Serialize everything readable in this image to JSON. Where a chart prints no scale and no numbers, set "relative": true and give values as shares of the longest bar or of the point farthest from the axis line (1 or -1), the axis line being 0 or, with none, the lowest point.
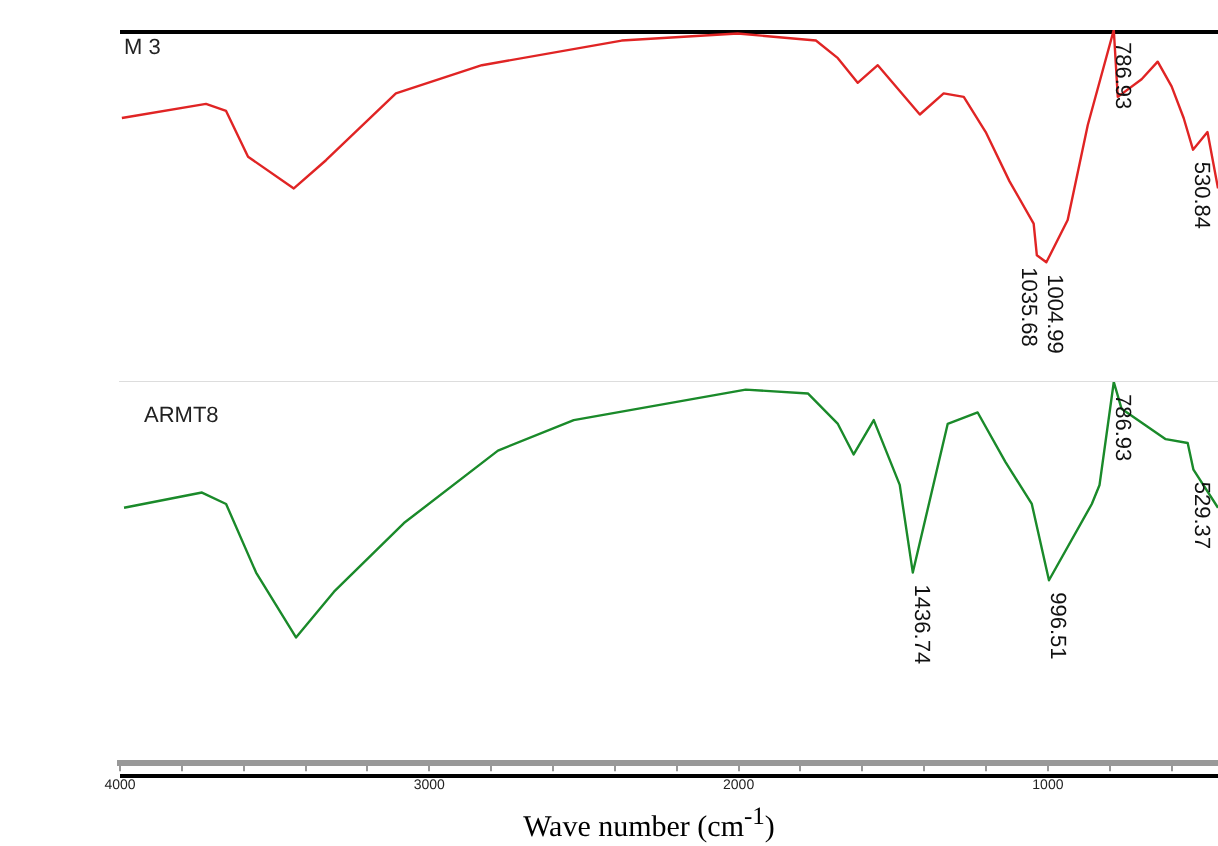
{
  "chart_data": [
    {
      "type": "line",
      "relative": true,
      "xlim": [
        4000,
        450
      ],
      "tick_labels": false,
      "grid": false,
      "legend": false,
      "marker": "none",
      "line_style": "solid",
      "series": [
        {
          "name": "M 3",
          "color": "#e02424",
          "x": [
            3994,
            3722,
            3657,
            3586,
            3438,
            3334,
            3108,
            2830,
            2378,
            2003,
            1750,
            1679,
            1615,
            1550,
            1414,
            1337,
            1272,
            1201,
            1124,
            1046,
            1035.68,
            1004.99,
            936,
            871,
            786.93,
            774,
            697,
            645,
            600,
            561,
            530.84,
            484,
            450
          ],
          "values": [
            0.75,
            0.79,
            0.77,
            0.64,
            0.55,
            0.63,
            0.82,
            0.9,
            0.97,
            0.99,
            0.97,
            0.92,
            0.85,
            0.9,
            0.76,
            0.82,
            0.81,
            0.71,
            0.57,
            0.45,
            0.36,
            0.34,
            0.46,
            0.73,
            1,
            0.81,
            0.86,
            0.91,
            0.84,
            0.75,
            0.66,
            0.71,
            0.55
          ]
        }
      ],
      "annotations": [
        {
          "text": "1035.68",
          "x": 1035.68,
          "y": 0.36
        },
        {
          "text": "1004.99",
          "x": 1004.99,
          "y": 0.34
        },
        {
          "text": "786.93",
          "x": 786.93,
          "y": 1
        },
        {
          "text": "530.84",
          "x": 530.84,
          "y": 0.66
        }
      ]
    },
    {
      "type": "line",
      "relative": true,
      "xlim": [
        4000,
        450
      ],
      "xticks": [
        4000,
        {
          "value": 3800,
          "label": null
        },
        {
          "value": 3600,
          "label": null
        },
        {
          "value": 3400,
          "label": null
        },
        {
          "value": 3200,
          "label": null
        },
        3000,
        {
          "value": 2800,
          "label": null
        },
        {
          "value": 2600,
          "label": null
        },
        {
          "value": 2400,
          "label": null
        },
        {
          "value": 2200,
          "label": null
        },
        2000,
        {
          "value": 1800,
          "label": null
        },
        {
          "value": 1600,
          "label": null
        },
        {
          "value": 1400,
          "label": null
        },
        {
          "value": 1200,
          "label": null
        },
        1000,
        {
          "value": 800,
          "label": null
        },
        {
          "value": 600,
          "label": null
        }
      ],
      "tick_labels": "x",
      "grid": false,
      "legend": false,
      "marker": "none",
      "line_style": "solid",
      "xlabel": "Wave number (cm$^{-1}$)",
      "series": [
        {
          "name": "ARMT8",
          "color": "#1a8a2a",
          "x": [
            3987,
            3735,
            3657,
            3560,
            3431,
            3308,
            3082,
            2778,
            2533,
            1977,
            1776,
            1679,
            1628,
            1563,
            1479,
            1436.74,
            1324,
            1227,
            1137,
            1052,
            996.51,
            858,
            833,
            786.93,
            762,
            619,
            548,
            529.37,
            450
          ],
          "values": [
            0.67,
            0.71,
            0.68,
            0.5,
            0.33,
            0.45,
            0.63,
            0.82,
            0.9,
            0.98,
            0.97,
            0.89,
            0.81,
            0.9,
            0.73,
            0.5,
            0.89,
            0.92,
            0.79,
            0.68,
            0.48,
            0.68,
            0.73,
            1,
            0.93,
            0.85,
            0.84,
            0.77,
            0.67
          ]
        }
      ],
      "annotations": [
        {
          "text": "1436.74",
          "x": 1436.74,
          "y": 0.5
        },
        {
          "text": "996.51",
          "x": 996.51,
          "y": 0.48
        },
        {
          "text": "786.93",
          "x": 786.93,
          "y": 1
        },
        {
          "text": "529.37",
          "x": 529.37,
          "y": 0.77
        }
      ]
    }
  ]
}
